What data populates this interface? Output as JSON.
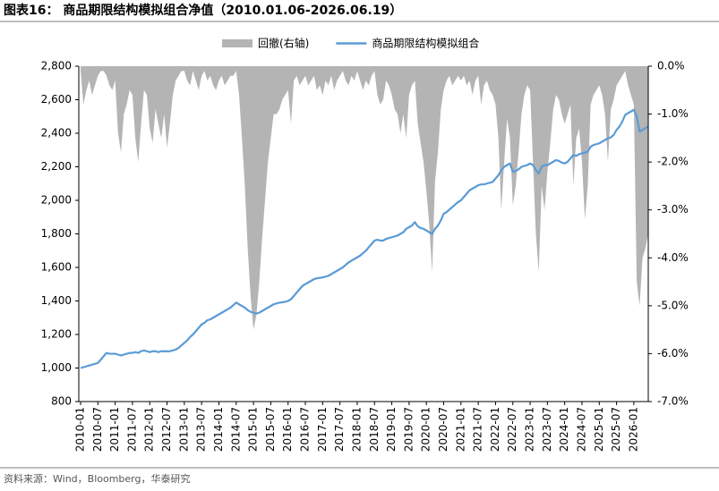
{
  "chart_data": {
    "type": "line",
    "title": "图表16： 商品期限结构模拟组合净值（2010.01.06-2026.06.19）",
    "source": "资料来源：Wind，Bloomberg，华泰研究",
    "categories": [
      "2010-01",
      null,
      null,
      null,
      null,
      null,
      "2010-07",
      null,
      null,
      null,
      null,
      null,
      "2011-01",
      null,
      null,
      null,
      null,
      null,
      "2011-07",
      null,
      null,
      null,
      null,
      null,
      "2012-01",
      null,
      null,
      null,
      null,
      null,
      "2012-07",
      null,
      null,
      null,
      null,
      null,
      "2013-01",
      null,
      null,
      null,
      null,
      null,
      "2013-07",
      null,
      null,
      null,
      null,
      null,
      "2014-01",
      null,
      null,
      null,
      null,
      null,
      "2014-07",
      null,
      null,
      null,
      null,
      null,
      "2015-01",
      null,
      null,
      null,
      null,
      null,
      "2015-07",
      null,
      null,
      null,
      null,
      null,
      "2016-01",
      null,
      null,
      null,
      null,
      null,
      "2016-07",
      null,
      null,
      null,
      null,
      null,
      "2017-01",
      null,
      null,
      null,
      null,
      null,
      "2017-07",
      null,
      null,
      null,
      null,
      null,
      "2018-01",
      null,
      null,
      null,
      null,
      null,
      "2018-07",
      null,
      null,
      null,
      null,
      null,
      "2019-01",
      null,
      null,
      null,
      null,
      null,
      "2019-07",
      null,
      null,
      null,
      null,
      null,
      "2020-01",
      null,
      null,
      null,
      null,
      null,
      "2020-07",
      null,
      null,
      null,
      null,
      null,
      "2021-01",
      null,
      null,
      null,
      null,
      null,
      "2021-07",
      null,
      null,
      null,
      null,
      null,
      "2022-01",
      null,
      null,
      null,
      null,
      null,
      "2022-07",
      null,
      null,
      null,
      null,
      null,
      "2023-01",
      null,
      null,
      null,
      null,
      null,
      "2023-07",
      null,
      null,
      null,
      null,
      null,
      "2024-01",
      null,
      null,
      null,
      null,
      null,
      "2024-07",
      null,
      null,
      null,
      null,
      null,
      "2025-01",
      null,
      null,
      null,
      null,
      null,
      "2025-07",
      null,
      null,
      null,
      null,
      null,
      "2026-01",
      null,
      null,
      null,
      null,
      null
    ],
    "series": [
      {
        "name": "回撤(右轴)",
        "color": "#b4b4b4",
        "type": "area",
        "axis": "y2",
        "values": [
          -0.1,
          -0.8,
          -0.5,
          -0.3,
          -0.6,
          -0.4,
          -0.2,
          -0.1,
          -0.1,
          -0.2,
          -0.4,
          -0.5,
          -0.3,
          -1.4,
          -1.8,
          -1.0,
          -0.8,
          -0.5,
          -0.6,
          -1.5,
          -2.0,
          -1.2,
          -0.5,
          -0.6,
          -1.3,
          -1.6,
          -0.9,
          -1.2,
          -1.5,
          -1.0,
          -1.7,
          -1.2,
          -0.6,
          -0.3,
          -0.2,
          -0.1,
          -0.1,
          -0.3,
          -0.4,
          -0.1,
          -0.3,
          -0.5,
          -0.2,
          -0.1,
          -0.3,
          -0.2,
          -0.4,
          -0.5,
          -0.3,
          -0.2,
          -0.4,
          -0.3,
          -0.2,
          -0.2,
          -0.1,
          -0.6,
          -1.5,
          -2.5,
          -3.8,
          -4.8,
          -5.5,
          -5.2,
          -4.5,
          -3.6,
          -2.8,
          -2.0,
          -1.5,
          -1.0,
          -1.0,
          -0.9,
          -0.7,
          -0.6,
          -0.5,
          -1.2,
          -0.3,
          -0.2,
          -0.4,
          -0.3,
          -0.2,
          -0.4,
          -0.3,
          -0.2,
          -0.5,
          -0.4,
          -0.6,
          -0.3,
          -0.4,
          -0.2,
          -0.5,
          -0.3,
          -0.2,
          -0.1,
          -0.3,
          -0.4,
          -0.2,
          -0.3,
          -0.1,
          -0.3,
          -0.5,
          -0.3,
          -0.4,
          -0.2,
          -0.1,
          -0.6,
          -0.8,
          -0.7,
          -0.3,
          -0.4,
          -0.6,
          -0.9,
          -1.0,
          -1.4,
          -1.0,
          -1.5,
          -0.6,
          -0.4,
          -0.3,
          -1.2,
          -1.6,
          -2.0,
          -2.6,
          -3.3,
          -4.3,
          -2.4,
          -1.8,
          -0.9,
          -0.5,
          -0.3,
          -0.2,
          -0.4,
          -0.3,
          -0.2,
          -0.3,
          -0.2,
          -0.4,
          -0.3,
          -0.6,
          -0.3,
          -0.2,
          -0.8,
          -0.4,
          -0.3,
          -0.5,
          -0.6,
          -0.8,
          -1.5,
          -3.0,
          -2.0,
          -1.1,
          -1.5,
          -2.9,
          -2.5,
          -1.8,
          -1.0,
          -0.6,
          -0.4,
          -0.5,
          -2.0,
          -3.5,
          -4.3,
          -2.5,
          -3.0,
          -2.2,
          -1.6,
          -0.9,
          -0.6,
          -0.7,
          -1.0,
          -1.2,
          -1.0,
          -0.8,
          -2.5,
          -1.5,
          -1.3,
          -2.0,
          -3.2,
          -2.5,
          -0.8,
          -0.6,
          -0.5,
          -0.4,
          -0.6,
          -1.0,
          -2.0,
          -0.9,
          -0.7,
          -0.4,
          -0.3,
          -0.2,
          -0.1,
          -0.4,
          -0.6,
          -0.8,
          -4.5,
          -5.0,
          -4.0,
          -3.8,
          -3.5
        ]
      },
      {
        "name": "商品期限结构模拟组合",
        "color": "#5b9bd5",
        "type": "line",
        "values": [
          1000,
          1005,
          1010,
          1015,
          1020,
          1025,
          1030,
          1050,
          1070,
          1090,
          1085,
          1085,
          1085,
          1080,
          1075,
          1080,
          1085,
          1090,
          1090,
          1095,
          1090,
          1100,
          1105,
          1100,
          1095,
          1100,
          1100,
          1095,
          1100,
          1100,
          1100,
          1100,
          1105,
          1110,
          1120,
          1135,
          1150,
          1165,
          1185,
          1200,
          1220,
          1240,
          1260,
          1270,
          1285,
          1290,
          1300,
          1310,
          1320,
          1330,
          1340,
          1350,
          1360,
          1375,
          1390,
          1380,
          1370,
          1360,
          1345,
          1335,
          1330,
          1325,
          1330,
          1340,
          1350,
          1360,
          1370,
          1380,
          1385,
          1390,
          1392,
          1395,
          1400,
          1410,
          1430,
          1450,
          1470,
          1490,
          1500,
          1510,
          1520,
          1530,
          1535,
          1538,
          1540,
          1545,
          1550,
          1560,
          1570,
          1580,
          1590,
          1600,
          1615,
          1630,
          1640,
          1650,
          1660,
          1670,
          1685,
          1700,
          1720,
          1740,
          1760,
          1765,
          1760,
          1760,
          1770,
          1775,
          1780,
          1785,
          1790,
          1800,
          1810,
          1830,
          1840,
          1850,
          1870,
          1845,
          1835,
          1830,
          1820,
          1810,
          1800,
          1830,
          1850,
          1880,
          1920,
          1930,
          1945,
          1960,
          1975,
          1990,
          2000,
          2020,
          2040,
          2060,
          2070,
          2080,
          2090,
          2095,
          2095,
          2100,
          2105,
          2110,
          2130,
          2150,
          2180,
          2200,
          2210,
          2220,
          2170,
          2175,
          2185,
          2200,
          2205,
          2210,
          2220,
          2210,
          2180,
          2160,
          2200,
          2210,
          2210,
          2220,
          2230,
          2240,
          2235,
          2225,
          2220,
          2230,
          2250,
          2270,
          2265,
          2275,
          2280,
          2285,
          2290,
          2320,
          2330,
          2335,
          2340,
          2350,
          2360,
          2370,
          2375,
          2390,
          2420,
          2440,
          2470,
          2510,
          2520,
          2530,
          2540,
          2500,
          2410,
          2420,
          2430,
          2440
        ]
      }
    ],
    "ylim": [
      800,
      2800
    ],
    "yticks": [
      800,
      {
        "value": 1000,
        "label": "1,000"
      },
      {
        "value": 1200,
        "label": "1,200"
      },
      {
        "value": 1400,
        "label": "1,400"
      },
      {
        "value": 1600,
        "label": "1,600"
      },
      {
        "value": 1800,
        "label": "1,800"
      },
      {
        "value": 2000,
        "label": "2,000"
      },
      {
        "value": 2200,
        "label": "2,200"
      },
      {
        "value": 2400,
        "label": "2,400"
      },
      {
        "value": 2600,
        "label": "2,600"
      },
      {
        "value": 2800,
        "label": "2,800"
      }
    ],
    "y2lim": [
      -7,
      0
    ],
    "y2ticks": [
      {
        "value": 0,
        "label": "0.0%"
      },
      {
        "value": -1,
        "label": "-1.0%"
      },
      {
        "value": -2,
        "label": "-2.0%"
      },
      {
        "value": -3,
        "label": "-3.0%"
      },
      {
        "value": -4,
        "label": "-4.0%"
      },
      {
        "value": -5,
        "label": "-5.0%"
      },
      {
        "value": -6,
        "label": "-6.0%"
      },
      {
        "value": -7,
        "label": "-7.0%"
      }
    ],
    "legend": "top"
  }
}
